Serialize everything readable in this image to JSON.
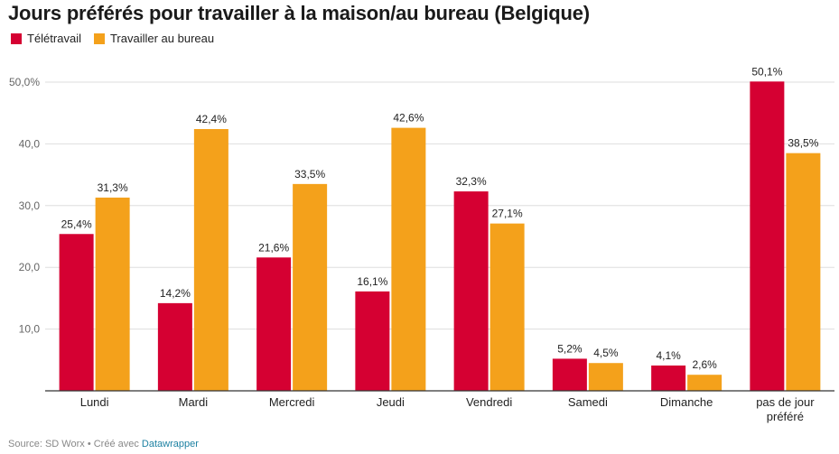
{
  "title": "Jours préférés pour travailler à la maison/au bureau (Belgique)",
  "source_prefix": "Source: SD Worx • Créé avec ",
  "source_link": "Datawrapper",
  "colors": {
    "teletravail": "#d50032",
    "bureau": "#f4a11b",
    "grid": "#dedede",
    "axis": "#333333"
  },
  "chart_data": {
    "type": "bar",
    "categories": [
      "Lundi",
      "Mardi",
      "Mercredi",
      "Jeudi",
      "Vendredi",
      "Samedi",
      "Dimanche",
      "pas de jour préféré"
    ],
    "series": [
      {
        "name": "Télétravail",
        "values": [
          25.4,
          14.2,
          21.6,
          16.1,
          32.3,
          5.2,
          4.1,
          50.1
        ],
        "labels": [
          "25,4%",
          "14,2%",
          "21,6%",
          "16,1%",
          "32,3%",
          "5,2%",
          "4,1%",
          "50,1%"
        ]
      },
      {
        "name": "Travailler au bureau",
        "values": [
          31.3,
          42.4,
          33.5,
          42.6,
          27.1,
          4.5,
          2.6,
          38.5
        ],
        "labels": [
          "31,3%",
          "42,4%",
          "33,5%",
          "42,6%",
          "27,1%",
          "4,5%",
          "2,6%",
          "38,5%"
        ]
      }
    ],
    "yticks": [
      10,
      20,
      30,
      40,
      50
    ],
    "ytick_labels": [
      "10,0",
      "20,0",
      "30,0",
      "40,0",
      "50,0%"
    ],
    "ylim": [
      0,
      50
    ],
    "grid": true,
    "legend": "top-left"
  }
}
